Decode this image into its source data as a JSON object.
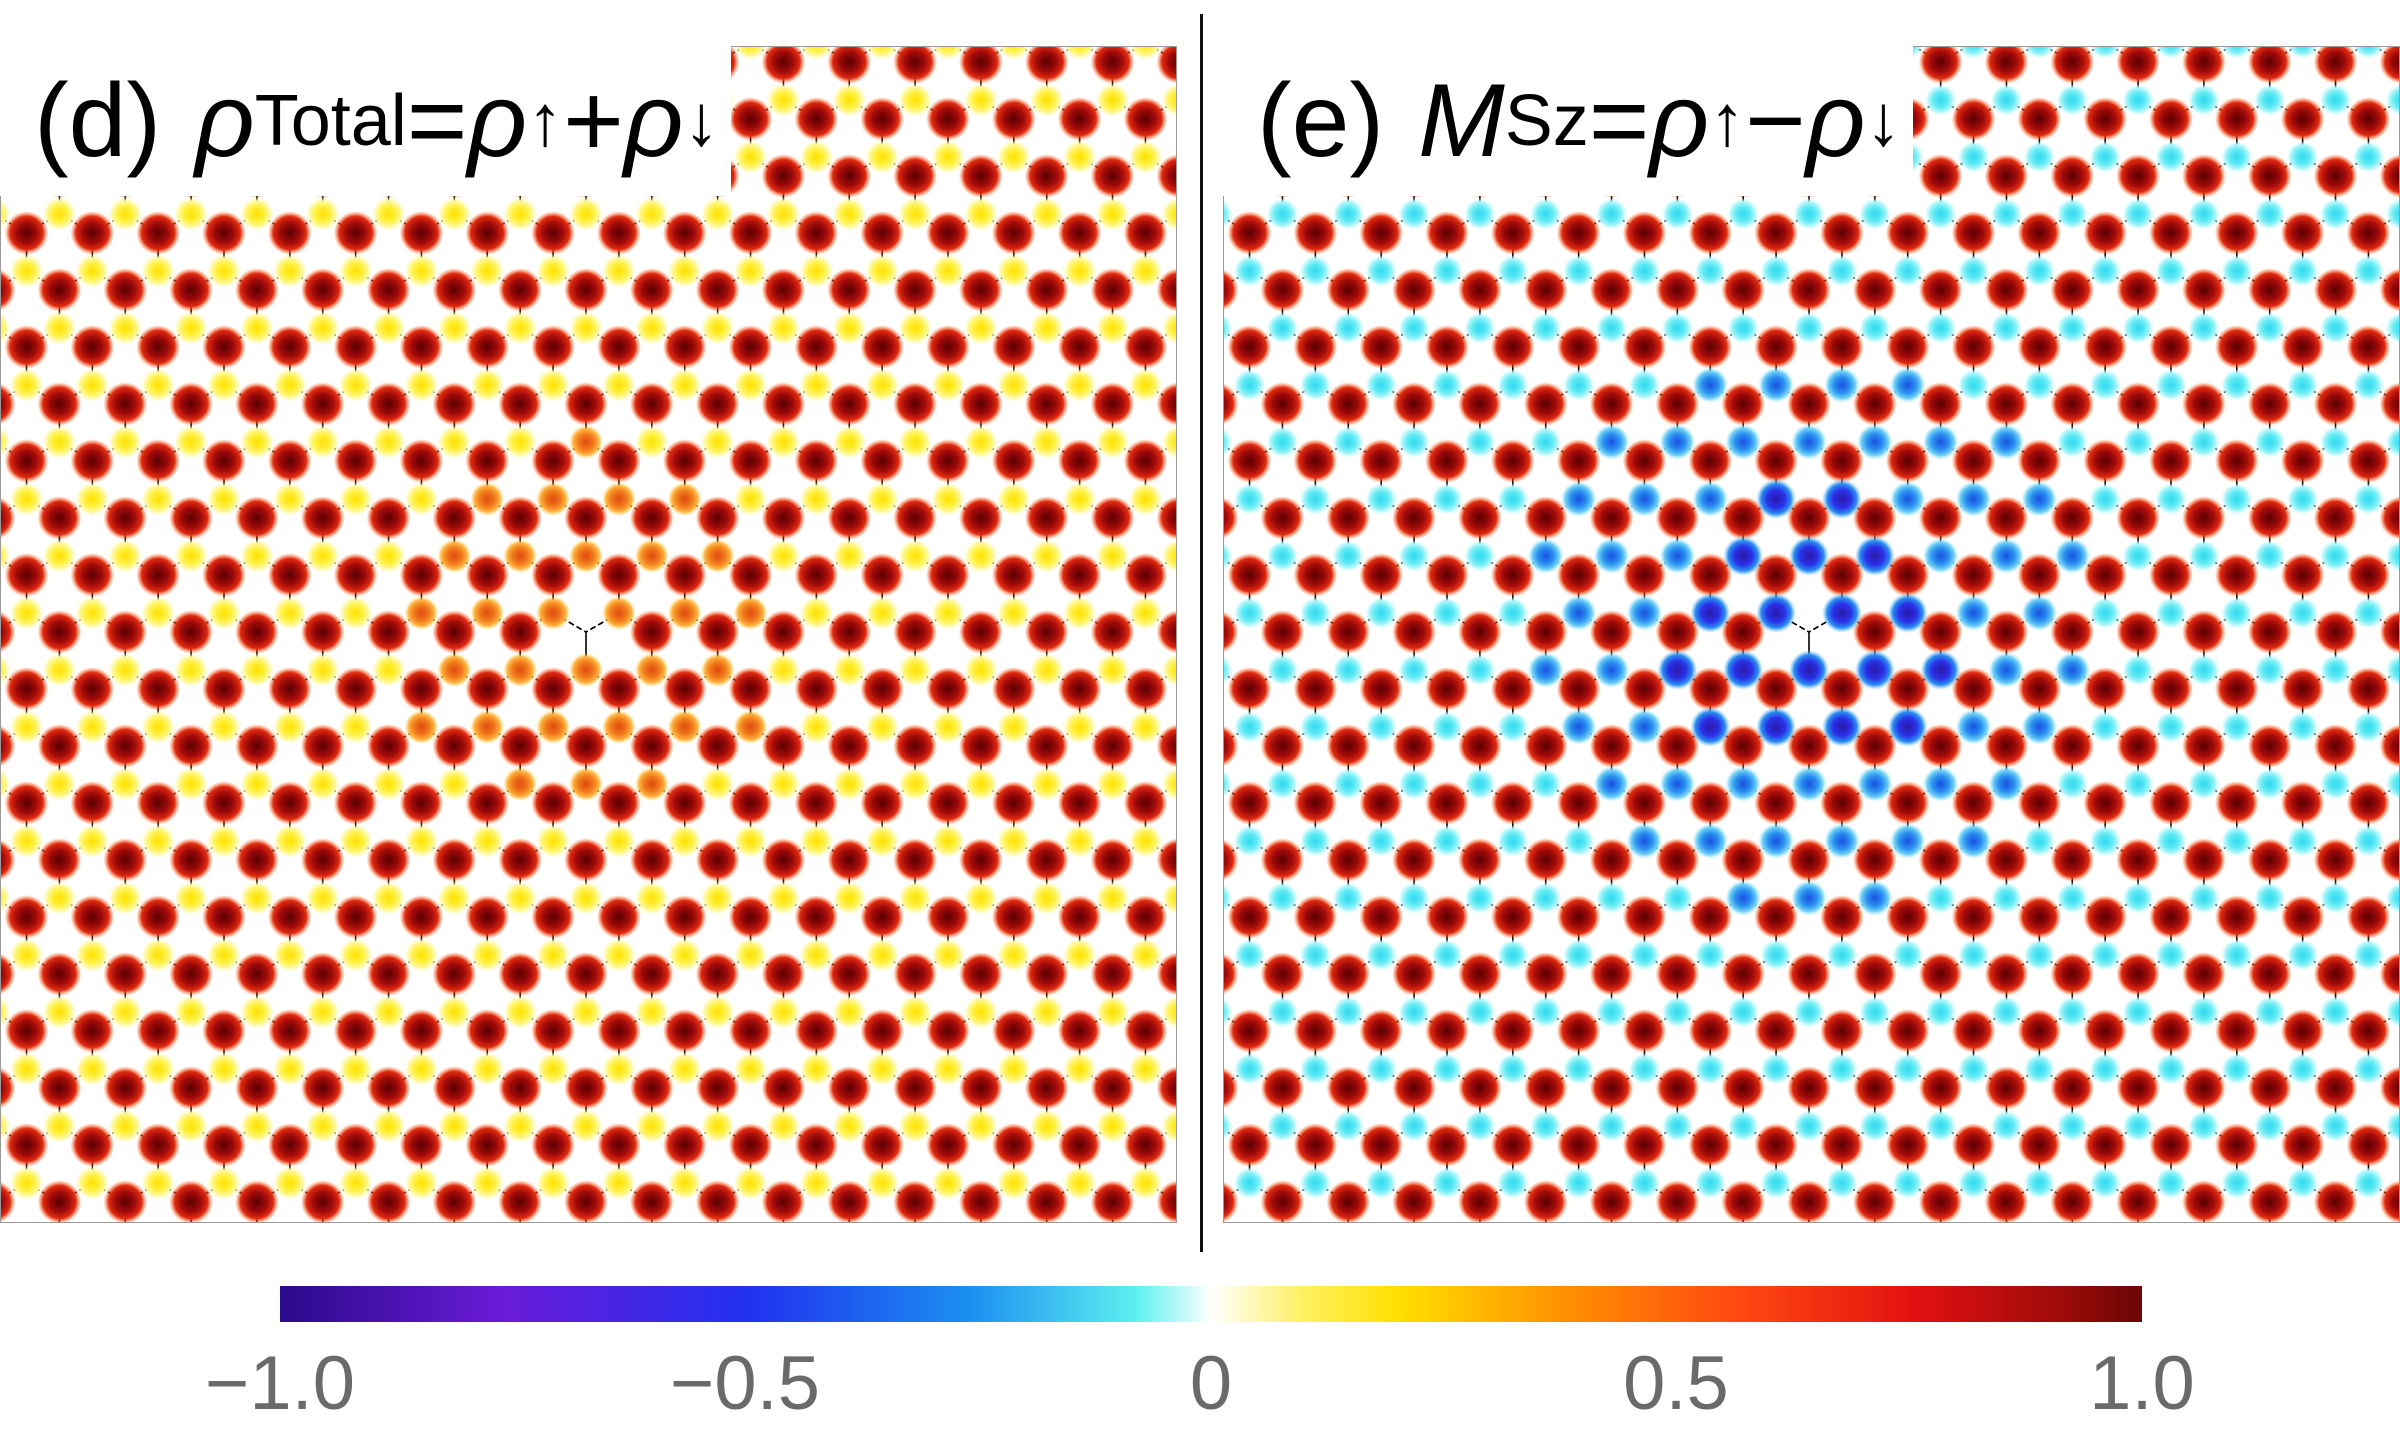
{
  "panels": [
    {
      "id": "d",
      "label": "(d)",
      "formula": {
        "lhs": "ρ",
        "lhs_sub": "Total",
        "eq": "=",
        "a": "ρ",
        "a_sub": "↑",
        "op": "+",
        "b": "ρ",
        "b_sub": "↓"
      },
      "quantity": "total_density"
    },
    {
      "id": "e",
      "label": "(e)",
      "formula": {
        "lhs": "M",
        "lhs_sub": "Sz",
        "eq": "=",
        "a": "ρ",
        "a_sub": "↑",
        "op": "−",
        "b": "ρ",
        "b_sub": "↓"
      },
      "quantity": "magnetization"
    }
  ],
  "colorbar": {
    "ticks": [
      "−1.0",
      "−0.5",
      "0",
      "0.5",
      "1.0"
    ],
    "range": [
      -1.0,
      1.0
    ],
    "colors": {
      "neg_max": "#2a0a8a",
      "neg_mid": "#2230f0",
      "neg_low": "#5ef0f0",
      "zero": "#ffffff",
      "pos_low": "#ffe000",
      "pos_mid": "#ff4a10",
      "pos_max": "#6a0606"
    }
  }
}
